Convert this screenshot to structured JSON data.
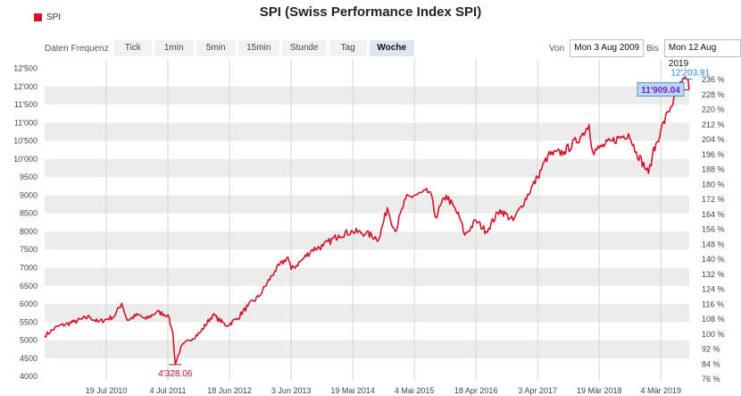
{
  "title": "SPI (Swiss Performance Index SPI)",
  "legend": {
    "label": "SPI",
    "color": "#d2142b"
  },
  "toolbar": {
    "label": "Daten Frequenz",
    "buttons": [
      "Tick",
      "1min",
      "5min",
      "15min",
      "Stunde",
      "Tag",
      "Woche"
    ],
    "active": "Woche"
  },
  "range": {
    "from_label": "Von",
    "from_value": "Mon 3 Aug 2009",
    "to_label": "Bis",
    "to_value": "Mon 12 Aug 2019"
  },
  "chart_data": {
    "type": "line",
    "series": [
      {
        "name": "SPI",
        "color": "#d2142b",
        "points": [
          [
            "2009-08-03",
            5120
          ],
          [
            "2009-10-15",
            5380
          ],
          [
            "2010-01-15",
            5500
          ],
          [
            "2010-04-15",
            5650
          ],
          [
            "2010-06-01",
            5500
          ],
          [
            "2010-09-01",
            5650
          ],
          [
            "2010-10-15",
            6020
          ],
          [
            "2010-11-15",
            5550
          ],
          [
            "2011-01-15",
            5700
          ],
          [
            "2011-03-01",
            5580
          ],
          [
            "2011-05-01",
            5780
          ],
          [
            "2011-07-04",
            5700
          ],
          [
            "2011-08-01",
            5200
          ],
          [
            "2011-08-15",
            4328.06
          ],
          [
            "2011-09-15",
            4800
          ],
          [
            "2011-11-01",
            5000
          ],
          [
            "2012-01-01",
            5200
          ],
          [
            "2012-03-15",
            5700
          ],
          [
            "2012-06-01",
            5400
          ],
          [
            "2012-08-01",
            5600
          ],
          [
            "2012-10-01",
            5950
          ],
          [
            "2012-12-01",
            6200
          ],
          [
            "2013-03-01",
            6900
          ],
          [
            "2013-05-15",
            7300
          ],
          [
            "2013-06-03",
            6950
          ],
          [
            "2013-08-01",
            7200
          ],
          [
            "2013-10-01",
            7500
          ],
          [
            "2013-12-01",
            7600
          ],
          [
            "2014-03-01",
            7900
          ],
          [
            "2014-05-19",
            8000
          ],
          [
            "2014-08-01",
            7950
          ],
          [
            "2014-10-15",
            7800
          ],
          [
            "2014-12-01",
            8650
          ],
          [
            "2015-01-15",
            8000
          ],
          [
            "2015-03-15",
            8900
          ],
          [
            "2015-05-04",
            9000
          ],
          [
            "2015-08-01",
            9100
          ],
          [
            "2015-09-01",
            8400
          ],
          [
            "2015-11-01",
            9000
          ],
          [
            "2016-01-15",
            8400
          ],
          [
            "2016-02-15",
            7900
          ],
          [
            "2016-04-18",
            8300
          ],
          [
            "2016-06-15",
            8000
          ],
          [
            "2016-09-01",
            8600
          ],
          [
            "2016-11-15",
            8300
          ],
          [
            "2017-01-01",
            8700
          ],
          [
            "2017-04-03",
            9500
          ],
          [
            "2017-06-01",
            10100
          ],
          [
            "2017-09-01",
            10200
          ],
          [
            "2017-12-01",
            10600
          ],
          [
            "2018-01-20",
            10950
          ],
          [
            "2018-02-10",
            10200
          ],
          [
            "2018-03-19",
            10300
          ],
          [
            "2018-06-01",
            10500
          ],
          [
            "2018-09-01",
            10700
          ],
          [
            "2018-10-15",
            10200
          ],
          [
            "2018-12-24",
            9600
          ],
          [
            "2019-01-15",
            10100
          ],
          [
            "2019-03-04",
            10800
          ],
          [
            "2019-04-15",
            11300
          ],
          [
            "2019-06-01",
            11800
          ],
          [
            "2019-07-01",
            12100
          ],
          [
            "2019-07-29",
            12203.91
          ],
          [
            "2019-08-12",
            11909.04
          ]
        ]
      }
    ],
    "x_tick_labels": [
      "19 Jul 2010",
      "4 Jul 2011",
      "18 Jun 2012",
      "3 Jun 2013",
      "19 Mai 2014",
      "4 Mai 2015",
      "18 Apr 2016",
      "3 Apr 2017",
      "19 Mär 2018",
      "4 Mär 2019"
    ],
    "x_tick_dates": [
      "2010-07-19",
      "2011-07-04",
      "2012-06-18",
      "2013-06-03",
      "2014-05-19",
      "2015-05-04",
      "2016-04-18",
      "2017-04-03",
      "2018-03-19",
      "2019-03-04"
    ],
    "x_range": [
      "2009-08-03",
      "2019-08-12"
    ],
    "y_left_ticks": [
      "12'500",
      "12'000",
      "11'500",
      "11'000",
      "10'500",
      "10'000",
      "9500",
      "9000",
      "8500",
      "8000",
      "7500",
      "7000",
      "6500",
      "6000",
      "5500",
      "5000",
      "4500",
      "4000"
    ],
    "y_left_values": [
      12500,
      12000,
      11500,
      11000,
      10500,
      10000,
      9500,
      9000,
      8500,
      8000,
      7500,
      7000,
      6500,
      6000,
      5500,
      5000,
      4500,
      4000
    ],
    "ylim": [
      3880,
      12760
    ],
    "y_right_ticks": [
      "236 %",
      "228 %",
      "220 %",
      "212 %",
      "204 %",
      "196 %",
      "188 %",
      "180 %",
      "172 %",
      "164 %",
      "156 %",
      "148 %",
      "140 %",
      "132 %",
      "124 %",
      "116 %",
      "108 %",
      "100 %",
      "92 %",
      "84 %",
      "76 %"
    ],
    "y_right_values": [
      236,
      228,
      220,
      212,
      204,
      196,
      188,
      180,
      172,
      164,
      156,
      148,
      140,
      132,
      124,
      116,
      108,
      100,
      92,
      84,
      76
    ],
    "y_right_base": 5166,
    "annotations": {
      "min": {
        "date": "2011-08-15",
        "value": 4328.06,
        "label": "4'328.06"
      },
      "max": {
        "date": "2019-07-29",
        "value": 12203.91,
        "label": "12'203.91"
      },
      "last": {
        "date": "2019-08-12",
        "value": 11909.04,
        "label": "11'909.04"
      }
    },
    "grid": true
  }
}
